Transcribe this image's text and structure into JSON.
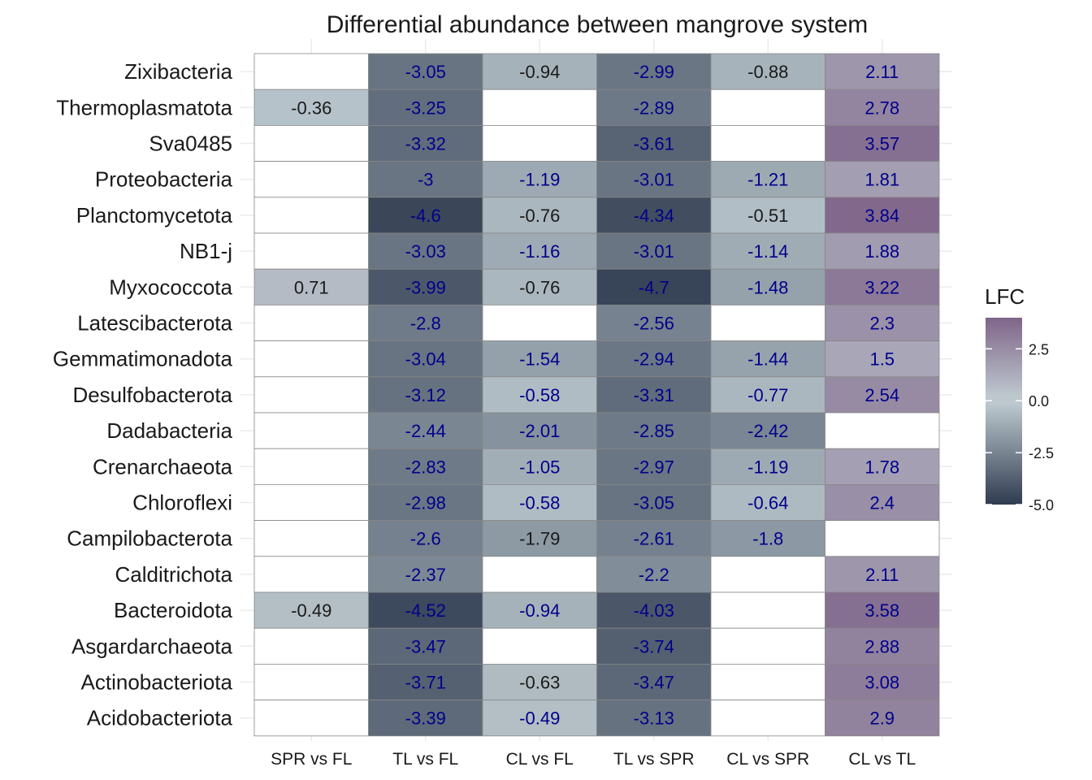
{
  "chart_data": {
    "type": "heatmap",
    "title": "Differential abundance between mangrove system",
    "xlabel": "",
    "ylabel": "",
    "columns": [
      "SPR vs FL",
      "TL vs FL",
      "CL vs FL",
      "TL vs SPR",
      "CL vs SPR",
      "CL vs TL"
    ],
    "rows": [
      "Zixibacteria",
      "Thermoplasmatota",
      "Sva0485",
      "Proteobacteria",
      "Planctomycetota",
      "NB1-j",
      "Myxococcota",
      "Latescibacterota",
      "Gemmatimonadota",
      "Desulfobacterota",
      "Dadabacteria",
      "Crenarchaeota",
      "Chloroflexi",
      "Campilobacterota",
      "Calditrichota",
      "Bacteroidota",
      "Asgardarchaeota",
      "Actinobacteriota",
      "Acidobacteriota"
    ],
    "values": [
      [
        null,
        -3.05,
        -0.94,
        -2.99,
        -0.88,
        2.11
      ],
      [
        -0.36,
        -3.25,
        null,
        -2.89,
        null,
        2.78
      ],
      [
        null,
        -3.32,
        null,
        -3.61,
        null,
        3.57
      ],
      [
        null,
        -3,
        -1.19,
        -3.01,
        -1.21,
        1.81
      ],
      [
        null,
        -4.6,
        -0.76,
        -4.34,
        -0.51,
        3.84
      ],
      [
        null,
        -3.03,
        -1.16,
        -3.01,
        -1.14,
        1.88
      ],
      [
        0.71,
        -3.99,
        -0.76,
        -4.7,
        -1.48,
        3.22
      ],
      [
        null,
        -2.8,
        null,
        -2.56,
        null,
        2.3
      ],
      [
        null,
        -3.04,
        -1.54,
        -2.94,
        -1.44,
        1.5
      ],
      [
        null,
        -3.12,
        -0.58,
        -3.31,
        -0.77,
        2.54
      ],
      [
        null,
        -2.44,
        -2.01,
        -2.85,
        -2.42,
        null
      ],
      [
        null,
        -2.83,
        -1.05,
        -2.97,
        -1.19,
        1.78
      ],
      [
        null,
        -2.98,
        -0.58,
        -3.05,
        -0.64,
        2.4
      ],
      [
        null,
        -2.6,
        -1.79,
        -2.61,
        -1.8,
        null
      ],
      [
        null,
        -2.37,
        null,
        -2.2,
        null,
        2.11
      ],
      [
        -0.49,
        -4.52,
        -0.94,
        -4.03,
        null,
        3.58
      ],
      [
        null,
        -3.47,
        null,
        -3.74,
        null,
        2.88
      ],
      [
        null,
        -3.71,
        -0.63,
        -3.47,
        null,
        3.08
      ],
      [
        null,
        -3.39,
        -0.49,
        -3.13,
        null,
        2.9
      ]
    ],
    "label_color": [
      [
        null,
        "blue",
        "black",
        "blue",
        "black",
        "blue"
      ],
      [
        "black",
        "blue",
        null,
        "blue",
        null,
        "blue"
      ],
      [
        null,
        "blue",
        null,
        "blue",
        null,
        "blue"
      ],
      [
        null,
        "blue",
        "blue",
        "blue",
        "blue",
        "blue"
      ],
      [
        null,
        "blue",
        "black",
        "blue",
        "black",
        "blue"
      ],
      [
        null,
        "blue",
        "blue",
        "blue",
        "blue",
        "blue"
      ],
      [
        "black",
        "blue",
        "black",
        "blue",
        "blue",
        "blue"
      ],
      [
        null,
        "blue",
        null,
        "blue",
        null,
        "blue"
      ],
      [
        null,
        "blue",
        "blue",
        "blue",
        "blue",
        "blue"
      ],
      [
        null,
        "blue",
        "blue",
        "blue",
        "blue",
        "blue"
      ],
      [
        null,
        "blue",
        "blue",
        "blue",
        "blue",
        null
      ],
      [
        null,
        "blue",
        "blue",
        "blue",
        "blue",
        "blue"
      ],
      [
        null,
        "blue",
        "blue",
        "blue",
        "blue",
        "blue"
      ],
      [
        null,
        "blue",
        "black",
        "blue",
        "blue",
        null
      ],
      [
        null,
        "blue",
        null,
        "blue",
        null,
        "blue"
      ],
      [
        "black",
        "blue",
        "blue",
        "blue",
        null,
        "blue"
      ],
      [
        null,
        "blue",
        null,
        "blue",
        null,
        "blue"
      ],
      [
        null,
        "blue",
        "black",
        "blue",
        null,
        "blue"
      ],
      [
        null,
        "blue",
        "blue",
        "blue",
        null,
        "blue"
      ]
    ],
    "legend": {
      "title": "LFC",
      "ticks": [
        2.5,
        0.0,
        -2.5,
        -5.0
      ],
      "tick_labels": [
        "2.5",
        "0.0",
        "-2.5",
        "-5.0"
      ],
      "range": [
        -5.0,
        4.0
      ],
      "placement": "right"
    },
    "colors": {
      "low": "#2f3b4f",
      "mid": "#c1cdd2",
      "high": "#7f6589",
      "label_blue": "#00008b",
      "label_black": "#1a1a1a",
      "cell_border": "#888888",
      "gridline": "#ebebeb"
    }
  }
}
